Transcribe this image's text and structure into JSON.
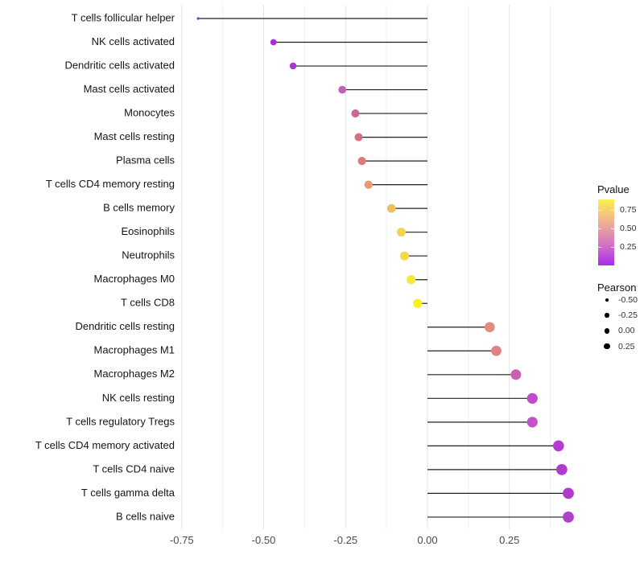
{
  "chart_data": {
    "type": "lollipop",
    "title": "",
    "xlabel": "",
    "ylabel": "",
    "x_ticks": [
      -0.75,
      -0.5,
      -0.25,
      0,
      0.25
    ],
    "x_tick_labels": [
      "-0.75",
      "-0.50",
      "-0.25",
      "0.00",
      "0.25"
    ],
    "xlim": [
      -0.757,
      0.487
    ],
    "grid": {
      "vertical_major_every": 0.25,
      "vertical_minor_every": 0.125,
      "horizontal": false
    },
    "baseline_x": 0,
    "rows": [
      {
        "label": "T cells follicular helper",
        "pearson": -0.7,
        "pvalue": 0.004,
        "color": "#8B2BE0"
      },
      {
        "label": "NK cells activated",
        "pearson": -0.47,
        "pvalue": 0.06,
        "color": "#A431D7"
      },
      {
        "label": "Dendritic cells activated",
        "pearson": -0.41,
        "pvalue": 0.08,
        "color": "#A836D3"
      },
      {
        "label": "Mast cells activated",
        "pearson": -0.26,
        "pvalue": 0.27,
        "color": "#C95FB4"
      },
      {
        "label": "Monocytes",
        "pearson": -0.22,
        "pvalue": 0.35,
        "color": "#CD6596"
      },
      {
        "label": "Mast cells resting",
        "pearson": -0.21,
        "pvalue": 0.42,
        "color": "#D67182"
      },
      {
        "label": "Plasma cells",
        "pearson": -0.2,
        "pvalue": 0.45,
        "color": "#DC7A7D"
      },
      {
        "label": "T cells CD4 memory resting",
        "pearson": -0.18,
        "pvalue": 0.57,
        "color": "#E79B74"
      },
      {
        "label": "B cells memory",
        "pearson": -0.11,
        "pvalue": 0.67,
        "color": "#EFC05E"
      },
      {
        "label": "Eosinophils",
        "pearson": -0.08,
        "pvalue": 0.72,
        "color": "#F3D34F"
      },
      {
        "label": "Neutrophils",
        "pearson": -0.07,
        "pvalue": 0.74,
        "color": "#F5DA48"
      },
      {
        "label": "Macrophages M0",
        "pearson": -0.05,
        "pvalue": 0.8,
        "color": "#F7E63C"
      },
      {
        "label": "T cells CD8",
        "pearson": -0.03,
        "pvalue": 0.88,
        "color": "#F9F01D"
      },
      {
        "label": "Dendritic cells resting",
        "pearson": 0.19,
        "pvalue": 0.52,
        "color": "#E58B7B"
      },
      {
        "label": "Macrophages M1",
        "pearson": 0.21,
        "pvalue": 0.47,
        "color": "#DF8287"
      },
      {
        "label": "Macrophages M2",
        "pearson": 0.27,
        "pvalue": 0.3,
        "color": "#CC5FB4"
      },
      {
        "label": "NK cells resting",
        "pearson": 0.32,
        "pvalue": 0.22,
        "color": "#C24ACA"
      },
      {
        "label": "T cells regulatory  Tregs",
        "pearson": 0.32,
        "pvalue": 0.23,
        "color": "#C553C8"
      },
      {
        "label": "T cells CD4 memory activated",
        "pearson": 0.4,
        "pvalue": 0.14,
        "color": "#B53BD2"
      },
      {
        "label": "T cells CD4 naive",
        "pearson": 0.41,
        "pvalue": 0.13,
        "color": "#B13AD0"
      },
      {
        "label": "T cells gamma delta",
        "pearson": 0.43,
        "pvalue": 0.13,
        "color": "#B03BCE"
      },
      {
        "label": "B cells naive",
        "pearson": 0.43,
        "pvalue": 0.15,
        "color": "#B23FCC"
      }
    ],
    "legend_pvalue": {
      "title": "Pvalue",
      "range": [
        0,
        0.89
      ],
      "ticks": [
        0.75,
        0.5,
        0.25
      ],
      "tick_labels": [
        "0.75",
        "0.50",
        "0.25"
      ],
      "gradient_stops": [
        {
          "at": 0.89,
          "color": "#FBF04D"
        },
        {
          "at": 0.75,
          "color": "#F6D26C"
        },
        {
          "at": 0.5,
          "color": "#E9A0A2"
        },
        {
          "at": 0.25,
          "color": "#D06BC8"
        },
        {
          "at": 0.0,
          "color": "#A82CEC"
        }
      ]
    },
    "legend_pearson": {
      "title": "Pearson",
      "items": [
        {
          "label": "-0.50",
          "diameter": 4.5
        },
        {
          "label": "-0.25",
          "diameter": 5.5
        },
        {
          "label": "0.00",
          "diameter": 6.5
        },
        {
          "label": "0.25",
          "diameter": 7.5
        }
      ]
    },
    "colors": {
      "stick": "#1f1f1f",
      "grid_major": "#e3e3e3",
      "grid_minor": "#f0f0f0",
      "axis_text": "#4a4a4a",
      "label_text": "#151515",
      "legend_dot": "#000000"
    }
  }
}
